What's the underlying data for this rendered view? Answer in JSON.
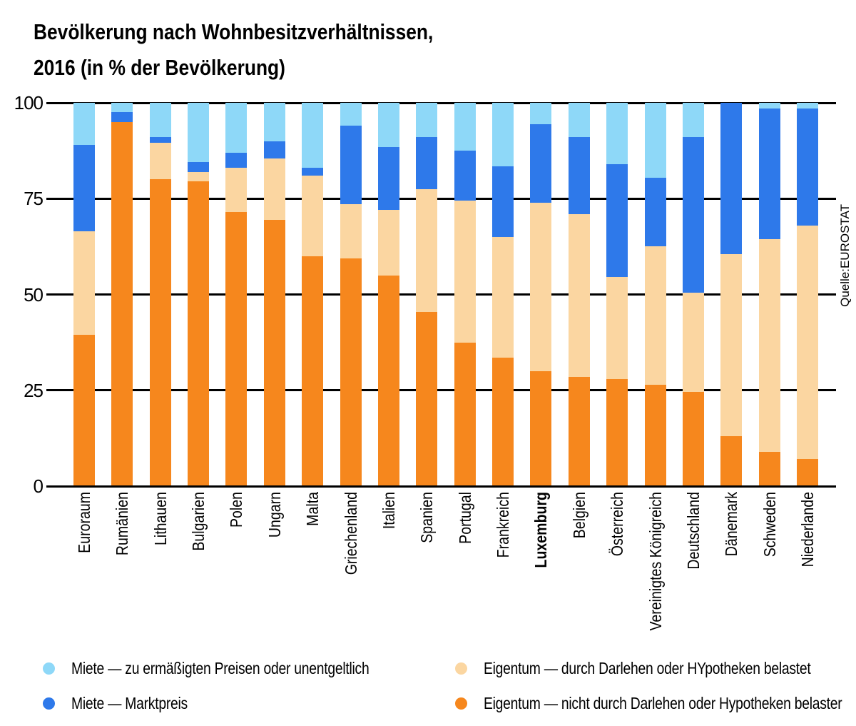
{
  "title": {
    "line1": "Bevölkerung nach Wohnbesitzverhältnissen,",
    "line2": "2016 (in % der Bevölkerung)"
  },
  "source": "Quelle:EUROSTAT",
  "colors": {
    "owner_no_mortgage": "#F6871D",
    "owner_mortgage": "#FBD6A1",
    "rent_market": "#2E79EA",
    "rent_reduced": "#8ED8F8",
    "axis": "#000000",
    "background": "#FFFFFF"
  },
  "y_axis": {
    "min": 0,
    "max": 100,
    "tick_labels": [
      "100",
      "75",
      "50",
      "25",
      "0"
    ]
  },
  "legend": {
    "left": [
      {
        "label": "Miete — zu ermäßigten Preisen oder unentgeltlich",
        "color_key": "rent_reduced"
      },
      {
        "label": "Miete — Marktpreis",
        "color_key": "rent_market"
      }
    ],
    "right": [
      {
        "label": "Eigentum — durch Darlehen oder HYpotheken belastet",
        "color_key": "owner_mortgage"
      },
      {
        "label": "Eigentum — nicht durch Darlehen oder Hypotheken belaster",
        "color_key": "owner_no_mortgage"
      }
    ]
  },
  "chart_data": {
    "type": "bar",
    "stacked": true,
    "title": "Bevölkerung nach Wohnbesitzverhältnissen, 2016 (in % der Bevölkerung)",
    "xlabel": "",
    "ylabel": "",
    "ylim": [
      0,
      100
    ],
    "yticks": [
      100,
      75,
      50,
      25,
      0
    ],
    "grid": true,
    "legend_position": "bottom",
    "source": "EUROSTAT",
    "highlighted_category": "Luxemburg",
    "categories": [
      "Euroraum",
      "Rumänien",
      "Lithauen",
      "Bulgarien",
      "Polen",
      "Ungarn",
      "Malta",
      "Griechenland",
      "Italien",
      "Spanien",
      "Portugal",
      "Frankreich",
      "Luxemburg",
      "Belgien",
      "Österreich",
      "Vereinigtes Königreich",
      "Deutschland",
      "Dänemark",
      "Schweden",
      "Niederlande"
    ],
    "series": [
      {
        "name": "Eigentum — nicht durch Darlehen oder Hypotheken belaster",
        "key": "owner_no_mortgage",
        "values": [
          39.5,
          95,
          80,
          79.5,
          71.5,
          69.5,
          60,
          59.5,
          55,
          45.5,
          37.5,
          33.5,
          30,
          28.5,
          28,
          26.5,
          24.5,
          13,
          9,
          7
        ]
      },
      {
        "name": "Eigentum — durch Darlehen oder HYpotheken belastet",
        "key": "owner_mortgage",
        "values": [
          27,
          0,
          9.5,
          2.5,
          11.5,
          16,
          21,
          14,
          17,
          32,
          37,
          31.5,
          44,
          42.5,
          26.5,
          36,
          26,
          47.5,
          55.5,
          61
        ]
      },
      {
        "name": "Miete — Marktpreis",
        "key": "rent_market",
        "values": [
          22.5,
          2.5,
          1.5,
          2.5,
          4,
          4.5,
          2,
          20.5,
          16.5,
          13.5,
          13,
          18.5,
          20.5,
          20,
          29.5,
          18,
          40.5,
          39.5,
          34,
          30.5
        ]
      },
      {
        "name": "Miete — zu ermäßigten Preisen oder unentgeltlich",
        "key": "rent_reduced",
        "values": [
          11,
          2.5,
          9,
          15.5,
          13,
          10,
          17,
          6,
          11.5,
          9,
          12.5,
          16.5,
          5.5,
          9,
          16,
          19.5,
          9,
          0,
          1.5,
          1.5
        ]
      }
    ]
  }
}
